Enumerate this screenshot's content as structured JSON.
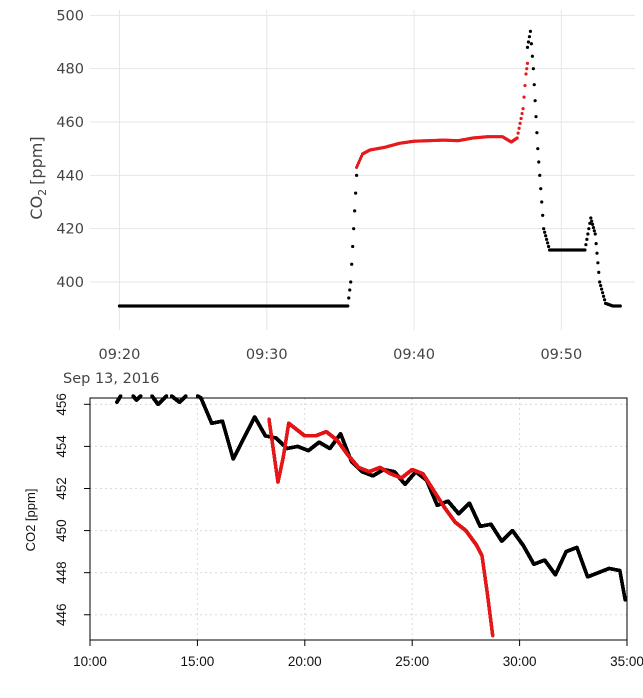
{
  "chart_data": [
    {
      "type": "scatter",
      "ylabel": "CO",
      "ylabel_subscript": "2",
      "ylabel_unit": "[ppm]",
      "x_ticks": [
        "09:20",
        "09:30",
        "09:40",
        "09:50"
      ],
      "x_sublabel": "Sep 13, 2016",
      "y_ticks": [
        400,
        420,
        440,
        460,
        480,
        500
      ],
      "xlim": [
        "09:18",
        "09:55"
      ],
      "ylim": [
        382,
        502
      ],
      "grid": true,
      "colors": {
        "black": "#000000",
        "red": "#e41a1c",
        "grid": "#e6e6e6"
      },
      "series": [
        {
          "color": "black",
          "x": [
            "09:20",
            "09:30",
            "09:35.5",
            "09:35.7",
            "09:35.9",
            "09:36.1"
          ],
          "y": [
            391,
            391,
            391,
            400,
            420,
            440
          ]
        },
        {
          "color": "red",
          "x": [
            "09:36.1",
            "09:36.5",
            "09:37",
            "09:38",
            "09:39",
            "09:40",
            "09:41",
            "09:42",
            "09:43",
            "09:44",
            "09:45",
            "09:46",
            "09:46.6",
            "09:47",
            "09:47.4",
            "09:47.6",
            "09:47.7"
          ],
          "y": [
            443,
            448,
            449.5,
            450.5,
            452,
            452.8,
            453,
            453.2,
            453,
            454,
            454.5,
            454.5,
            452.5,
            454,
            465,
            478,
            482
          ]
        },
        {
          "color": "black",
          "x": [
            "09:47.7",
            "09:47.9",
            "09:48.1",
            "09:48.4",
            "09:48.8",
            "09:49.2",
            "09:50",
            "09:51",
            "09:51.6",
            "09:52",
            "09:52.3",
            "09:52.6",
            "09:53",
            "09:53.5",
            "09:54"
          ],
          "y": [
            488,
            494,
            480,
            450,
            420,
            412,
            412,
            412,
            412,
            424,
            418,
            400,
            392,
            391,
            391
          ]
        }
      ]
    },
    {
      "type": "scatter",
      "ylabel": "CO2 [ppm]",
      "x_ticks": [
        "10:00",
        "15:00",
        "20:00",
        "25:00",
        "30:00",
        "35:00"
      ],
      "y_ticks": [
        446,
        448,
        450,
        452,
        454,
        456
      ],
      "xlim": [
        "10:00",
        "35:00"
      ],
      "ylim": [
        444.8,
        456.3
      ],
      "grid": true,
      "colors": {
        "black": "#000000",
        "red": "#e41a1c",
        "grid": "#d9d9d9"
      },
      "series": [
        {
          "color": "black",
          "x": [
            "11:15",
            "11:40",
            "12:10",
            "12:40",
            "13:10",
            "13:40",
            "14:10",
            "14:40",
            "15:10",
            "15:40",
            "16:10",
            "16:40",
            "17:10",
            "17:40",
            "18:10",
            "18:40",
            "19:10",
            "19:40",
            "20:10",
            "20:40",
            "21:10",
            "21:40",
            "22:10",
            "22:40",
            "23:10",
            "23:40",
            "24:10",
            "24:40",
            "25:10",
            "25:40",
            "26:10",
            "26:40",
            "27:10",
            "27:40",
            "28:10",
            "28:40",
            "29:10",
            "29:40",
            "30:10",
            "30:40",
            "31:10",
            "31:40",
            "32:10",
            "32:40",
            "33:10",
            "33:40",
            "34:10",
            "34:40",
            "34:55"
          ],
          "y": [
            456.1,
            456.8,
            456.2,
            456.7,
            456,
            456.5,
            456.1,
            456.6,
            456.3,
            455.1,
            455.2,
            453.4,
            454.4,
            455.4,
            454.5,
            454.4,
            453.9,
            454,
            453.8,
            454.2,
            453.9,
            454.6,
            453.3,
            452.8,
            452.6,
            452.9,
            452.8,
            452.2,
            452.8,
            452.4,
            451.2,
            451.4,
            450.8,
            451.3,
            450.2,
            450.3,
            449.5,
            450,
            449.3,
            448.4,
            448.6,
            447.9,
            449,
            449.2,
            447.8,
            448,
            448.2,
            448.1,
            446.7
          ]
        },
        {
          "color": "red",
          "x": [
            "18:20",
            "18:35",
            "18:45",
            "19:00",
            "19:15",
            "19:30",
            "19:45",
            "20:00",
            "20:30",
            "21:00",
            "21:30",
            "22:00",
            "22:30",
            "23:00",
            "23:30",
            "24:00",
            "24:30",
            "25:00",
            "25:30",
            "26:00",
            "26:30",
            "27:00",
            "27:30",
            "28:00",
            "28:15",
            "28:30",
            "28:45"
          ],
          "y": [
            455.3,
            453.5,
            452.3,
            453.5,
            455.1,
            454.9,
            454.7,
            454.5,
            454.5,
            454.7,
            454.3,
            453.6,
            453.0,
            452.8,
            453.0,
            452.7,
            452.5,
            452.9,
            452.7,
            451.9,
            451.1,
            450.4,
            450.0,
            449.3,
            448.8,
            447.0,
            445.0
          ]
        }
      ]
    }
  ]
}
